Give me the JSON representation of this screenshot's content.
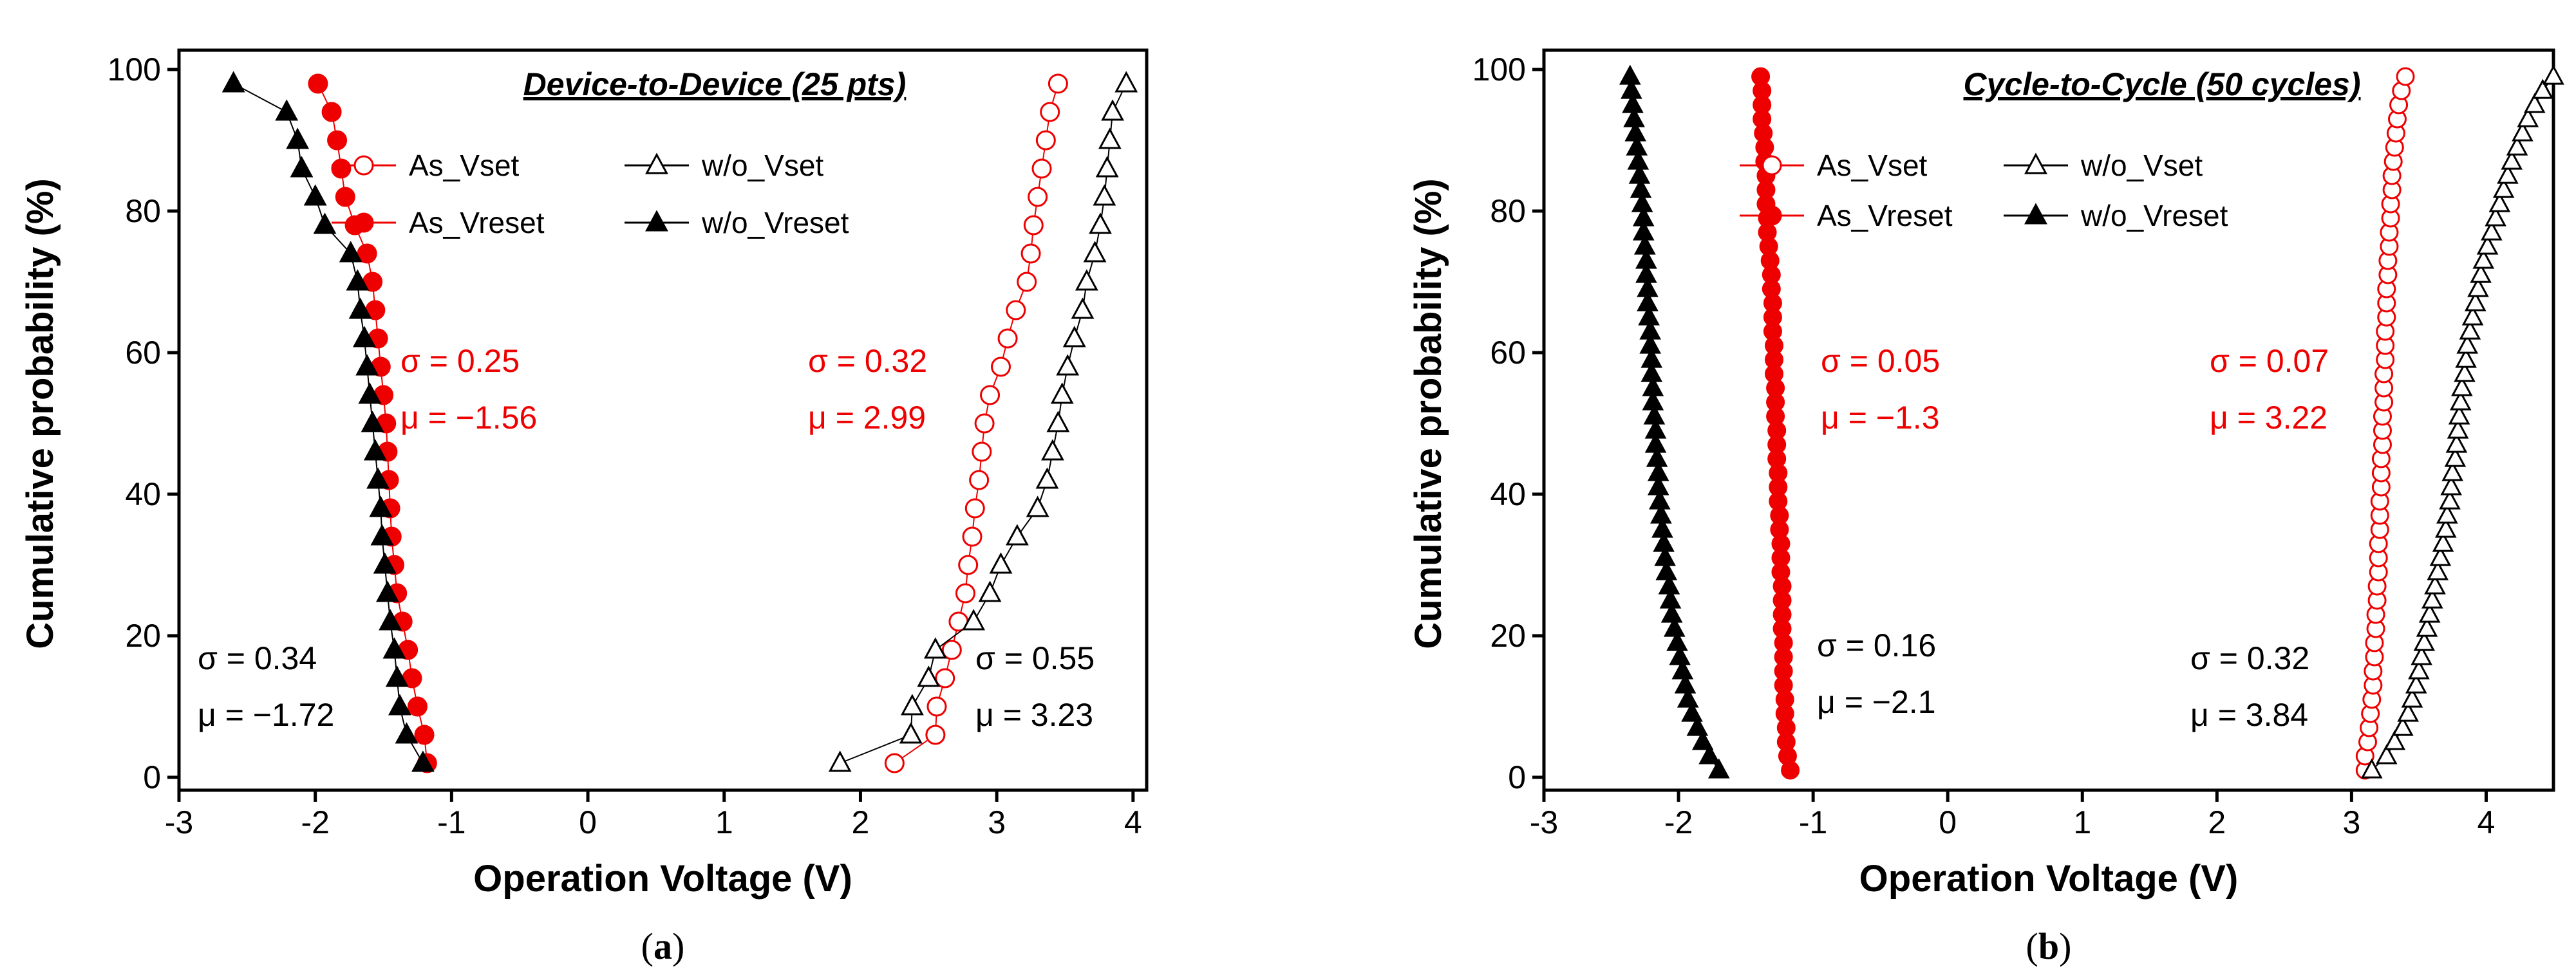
{
  "chart_data": [
    {
      "type": "scatter",
      "title": "Device-to-Device (25 pts)",
      "xlabel": "Operation Voltage (V)",
      "ylabel": "Cumulative probability (%)",
      "xlim": [
        -3,
        4.1
      ],
      "ylim": [
        0,
        100
      ],
      "xticks": [
        -3,
        -2,
        -1,
        0,
        1,
        2,
        3,
        4
      ],
      "yticks": [
        0,
        20,
        40,
        60,
        80,
        100
      ],
      "caption_letter": "a",
      "legend": [
        {
          "label": "As_Vset",
          "series": 0
        },
        {
          "label": "w/o_Vset",
          "series": 1
        },
        {
          "label": "As_Vreset",
          "series": 2
        },
        {
          "label": "w/o_Vreset",
          "series": 3
        }
      ],
      "series": [
        {
          "name": "As_Vset",
          "marker": "circle-open",
          "color": "#ee0000",
          "x": [
            2.25,
            2.55,
            2.56,
            2.62,
            2.67,
            2.72,
            2.77,
            2.79,
            2.82,
            2.84,
            2.87,
            2.89,
            2.91,
            2.95,
            3.03,
            3.08,
            3.14,
            3.22,
            3.25,
            3.27,
            3.3,
            3.33,
            3.36,
            3.39,
            3.45
          ],
          "y": [
            2,
            6,
            10,
            14,
            18,
            22,
            26,
            30,
            34,
            38,
            42,
            46,
            50,
            54,
            58,
            62,
            66,
            70,
            74,
            78,
            82,
            86,
            90,
            94,
            98
          ]
        },
        {
          "name": "w/o_Vset",
          "marker": "triangle-open",
          "color": "#000000",
          "x": [
            1.85,
            2.37,
            2.38,
            2.5,
            2.55,
            2.83,
            2.95,
            3.03,
            3.15,
            3.3,
            3.37,
            3.41,
            3.45,
            3.48,
            3.52,
            3.57,
            3.63,
            3.66,
            3.72,
            3.76,
            3.79,
            3.81,
            3.83,
            3.85,
            3.95
          ],
          "y": [
            2,
            6,
            10,
            14,
            18,
            22,
            26,
            30,
            34,
            38,
            42,
            46,
            50,
            54,
            58,
            62,
            66,
            70,
            74,
            78,
            82,
            86,
            90,
            94,
            98
          ]
        },
        {
          "name": "As_Vreset",
          "marker": "circle-filled",
          "color": "#ee0000",
          "x": [
            -1.18,
            -1.2,
            -1.25,
            -1.29,
            -1.32,
            -1.36,
            -1.4,
            -1.42,
            -1.44,
            -1.45,
            -1.46,
            -1.47,
            -1.48,
            -1.5,
            -1.52,
            -1.54,
            -1.56,
            -1.58,
            -1.62,
            -1.71,
            -1.78,
            -1.81,
            -1.84,
            -1.88,
            -1.98
          ],
          "y": [
            2,
            6,
            10,
            14,
            18,
            22,
            26,
            30,
            34,
            38,
            42,
            46,
            50,
            54,
            58,
            62,
            66,
            70,
            74,
            78,
            82,
            86,
            90,
            94,
            98
          ]
        },
        {
          "name": "w/o_Vreset",
          "marker": "triangle-filled",
          "color": "#000000",
          "x": [
            -1.21,
            -1.33,
            -1.38,
            -1.4,
            -1.42,
            -1.45,
            -1.47,
            -1.49,
            -1.51,
            -1.52,
            -1.54,
            -1.56,
            -1.58,
            -1.6,
            -1.62,
            -1.64,
            -1.67,
            -1.69,
            -1.74,
            -1.93,
            -2.0,
            -2.1,
            -2.13,
            -2.21,
            -2.6
          ],
          "y": [
            2,
            6,
            10,
            14,
            18,
            22,
            26,
            30,
            34,
            38,
            42,
            46,
            50,
            54,
            58,
            62,
            66,
            70,
            74,
            78,
            82,
            86,
            90,
            94,
            98
          ]
        }
      ],
      "annotations": [
        {
          "id": "set-red",
          "color": "#ee0000",
          "text1": "σ = 0.32",
          "text2": "μ = 2.99"
        },
        {
          "id": "reset-red",
          "color": "#ee0000",
          "text1": "σ = 0.25",
          "text2": "μ = −1.56"
        },
        {
          "id": "reset-black",
          "color": "#000000",
          "text1": "σ = 0.34",
          "text2": "μ = −1.72"
        },
        {
          "id": "set-black",
          "color": "#000000",
          "text1": "σ = 0.55",
          "text2": "μ = 3.23"
        }
      ]
    },
    {
      "type": "scatter",
      "title": "Cycle-to-Cycle (50 cycles)",
      "xlabel": "Operation Voltage (V)",
      "ylabel": "Cumulative probability (%)",
      "xlim": [
        -3,
        4.5
      ],
      "ylim": [
        0,
        100
      ],
      "xticks": [
        -3,
        -2,
        -1,
        0,
        1,
        2,
        3,
        4
      ],
      "yticks": [
        0,
        20,
        40,
        60,
        80,
        100
      ],
      "caption_letter": "b",
      "legend": [
        {
          "label": "As_Vset",
          "series": 0
        },
        {
          "label": "w/o_Vset",
          "series": 1
        },
        {
          "label": "As_Vreset",
          "series": 2
        },
        {
          "label": "w/o_Vreset",
          "series": 3
        }
      ],
      "series": [
        {
          "name": "As_Vset",
          "marker": "circle-open",
          "color": "#ee0000",
          "x": [
            3.1,
            3.1,
            3.12,
            3.13,
            3.14,
            3.15,
            3.16,
            3.16,
            3.17,
            3.17,
            3.18,
            3.18,
            3.19,
            3.19,
            3.2,
            3.2,
            3.2,
            3.21,
            3.21,
            3.21,
            3.22,
            3.22,
            3.22,
            3.23,
            3.23,
            3.23,
            3.24,
            3.24,
            3.24,
            3.25,
            3.25,
            3.25,
            3.26,
            3.26,
            3.26,
            3.27,
            3.27,
            3.28,
            3.28,
            3.29,
            3.29,
            3.3,
            3.3,
            3.31,
            3.32,
            3.33,
            3.34,
            3.35,
            3.37,
            3.4
          ],
          "y": [
            1,
            3,
            5,
            7,
            9,
            11,
            13,
            15,
            17,
            19,
            21,
            23,
            25,
            27,
            29,
            31,
            33,
            35,
            37,
            39,
            41,
            43,
            45,
            47,
            49,
            51,
            53,
            55,
            57,
            59,
            61,
            63,
            65,
            67,
            69,
            71,
            73,
            75,
            77,
            79,
            81,
            83,
            85,
            87,
            89,
            91,
            93,
            95,
            97,
            99
          ]
        },
        {
          "name": "w/o_Vset",
          "marker": "triangle-open",
          "color": "#000000",
          "x": [
            3.15,
            3.26,
            3.32,
            3.38,
            3.42,
            3.45,
            3.48,
            3.5,
            3.52,
            3.54,
            3.56,
            3.58,
            3.6,
            3.62,
            3.64,
            3.66,
            3.68,
            3.7,
            3.71,
            3.73,
            3.74,
            3.75,
            3.77,
            3.78,
            3.79,
            3.8,
            3.81,
            3.82,
            3.84,
            3.85,
            3.86,
            3.88,
            3.9,
            3.92,
            3.94,
            3.96,
            3.98,
            4.01,
            4.04,
            4.07,
            4.1,
            4.13,
            4.16,
            4.19,
            4.23,
            4.27,
            4.31,
            4.36,
            4.42,
            4.5
          ],
          "y": [
            1,
            3,
            5,
            7,
            9,
            11,
            13,
            15,
            17,
            19,
            21,
            23,
            25,
            27,
            29,
            31,
            33,
            35,
            37,
            39,
            41,
            43,
            45,
            47,
            49,
            51,
            53,
            55,
            57,
            59,
            61,
            63,
            65,
            67,
            69,
            71,
            73,
            75,
            77,
            79,
            81,
            83,
            85,
            87,
            89,
            91,
            93,
            95,
            97,
            99
          ]
        },
        {
          "name": "As_Vreset",
          "marker": "circle-filled",
          "color": "#ee0000",
          "x": [
            -1.17,
            -1.19,
            -1.2,
            -1.2,
            -1.21,
            -1.21,
            -1.22,
            -1.22,
            -1.22,
            -1.22,
            -1.23,
            -1.23,
            -1.23,
            -1.23,
            -1.24,
            -1.24,
            -1.24,
            -1.25,
            -1.25,
            -1.26,
            -1.26,
            -1.26,
            -1.27,
            -1.27,
            -1.27,
            -1.28,
            -1.28,
            -1.28,
            -1.29,
            -1.29,
            -1.29,
            -1.3,
            -1.3,
            -1.3,
            -1.31,
            -1.31,
            -1.32,
            -1.33,
            -1.34,
            -1.34,
            -1.35,
            -1.35,
            -1.35,
            -1.36,
            -1.36,
            -1.37,
            -1.38,
            -1.38,
            -1.38,
            -1.39
          ],
          "y": [
            1,
            3,
            5,
            7,
            9,
            11,
            13,
            15,
            17,
            19,
            21,
            23,
            25,
            27,
            29,
            31,
            33,
            35,
            37,
            39,
            41,
            43,
            45,
            47,
            49,
            51,
            53,
            55,
            57,
            59,
            61,
            63,
            65,
            67,
            69,
            71,
            73,
            75,
            77,
            79,
            81,
            83,
            85,
            87,
            89,
            91,
            93,
            95,
            97,
            99
          ]
        },
        {
          "name": "w/o_Vreset",
          "marker": "triangle-filled",
          "color": "#000000",
          "x": [
            -1.7,
            -1.77,
            -1.82,
            -1.86,
            -1.9,
            -1.93,
            -1.95,
            -1.97,
            -1.99,
            -2.01,
            -2.03,
            -2.05,
            -2.06,
            -2.07,
            -2.09,
            -2.1,
            -2.11,
            -2.12,
            -2.13,
            -2.14,
            -2.15,
            -2.15,
            -2.16,
            -2.17,
            -2.17,
            -2.18,
            -2.19,
            -2.19,
            -2.2,
            -2.2,
            -2.21,
            -2.21,
            -2.22,
            -2.23,
            -2.23,
            -2.24,
            -2.24,
            -2.25,
            -2.26,
            -2.26,
            -2.27,
            -2.28,
            -2.29,
            -2.3,
            -2.31,
            -2.32,
            -2.33,
            -2.34,
            -2.35,
            -2.36
          ],
          "y": [
            1,
            3,
            5,
            7,
            9,
            11,
            13,
            15,
            17,
            19,
            21,
            23,
            25,
            27,
            29,
            31,
            33,
            35,
            37,
            39,
            41,
            43,
            45,
            47,
            49,
            51,
            53,
            55,
            57,
            59,
            61,
            63,
            65,
            67,
            69,
            71,
            73,
            75,
            77,
            79,
            81,
            83,
            85,
            87,
            89,
            91,
            93,
            95,
            97,
            99
          ]
        }
      ],
      "annotations": [
        {
          "id": "reset-red",
          "color": "#ee0000",
          "text1": "σ = 0.05",
          "text2": "μ = −1.3"
        },
        {
          "id": "set-red",
          "color": "#ee0000",
          "text1": "σ = 0.07",
          "text2": "μ = 3.22"
        },
        {
          "id": "reset-black",
          "color": "#000000",
          "text1": "σ = 0.16",
          "text2": "μ = −2.1"
        },
        {
          "id": "set-black",
          "color": "#000000",
          "text1": "σ = 0.32",
          "text2": "μ = 3.84"
        }
      ]
    }
  ]
}
